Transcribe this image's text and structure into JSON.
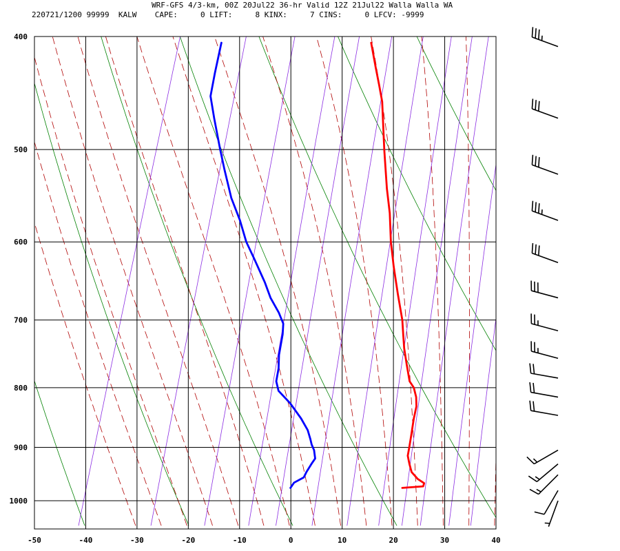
{
  "header": {
    "line1": "WRF-GFS 4/3-km, 00Z 20Jul22 36-hr Valid 12Z 21Jul22 Walla Walla WA",
    "line2": "220721/1200 99999  KALW    CAPE:     0 LIFT:     8 KINX:     7 CINS:     0 LFCV: -9999"
  },
  "chart_data": {
    "type": "skew-t",
    "xlim": [
      -50,
      40
    ],
    "x_ticks": [
      "-50",
      "-40",
      "-30",
      "-20",
      "-10",
      "0",
      "10",
      "20",
      "30",
      "40"
    ],
    "p_range": [
      400,
      1040
    ],
    "p_ticks": [
      "400",
      "500",
      "600",
      "700",
      "800",
      "900",
      "1000"
    ],
    "grid": true,
    "colors": {
      "temperature": "#ff0000",
      "dewpoint": "#0000ff",
      "dry_adiabat": "#008000",
      "moist_adiabat": "#b00000",
      "mixing_ratio": "#8a2be2"
    },
    "series": [
      {
        "key": "temperature",
        "points": [
          [
            975,
            19.8
          ],
          [
            972,
            23.8
          ],
          [
            966,
            23.8
          ],
          [
            958,
            22.3
          ],
          [
            945,
            20.7
          ],
          [
            930,
            19.8
          ],
          [
            915,
            19.0
          ],
          [
            900,
            18.8
          ],
          [
            880,
            18.5
          ],
          [
            850,
            18.0
          ],
          [
            830,
            17.8
          ],
          [
            815,
            17.2
          ],
          [
            800,
            16.2
          ],
          [
            790,
            15.0
          ],
          [
            765,
            13.5
          ],
          [
            740,
            12.0
          ],
          [
            720,
            11.0
          ],
          [
            700,
            10.0
          ],
          [
            665,
            7.6
          ],
          [
            630,
            5.2
          ],
          [
            600,
            3.2
          ],
          [
            567,
            1.3
          ],
          [
            540,
            -0.7
          ],
          [
            500,
            -3.5
          ],
          [
            470,
            -5.6
          ],
          [
            455,
            -6.7
          ],
          [
            440,
            -8.3
          ],
          [
            425,
            -10.0
          ],
          [
            405,
            -12.3
          ]
        ]
      },
      {
        "key": "dewpoint",
        "points": [
          [
            975,
            -2.0
          ],
          [
            965,
            -1.6
          ],
          [
            955,
            0.0
          ],
          [
            945,
            0.2
          ],
          [
            930,
            0.7
          ],
          [
            920,
            1.1
          ],
          [
            905,
            0.4
          ],
          [
            895,
            -0.4
          ],
          [
            885,
            -1.0
          ],
          [
            870,
            -2.0
          ],
          [
            850,
            -4.0
          ],
          [
            825,
            -7.0
          ],
          [
            805,
            -10.0
          ],
          [
            790,
            -11.0
          ],
          [
            770,
            -11.3
          ],
          [
            750,
            -12.0
          ],
          [
            720,
            -12.5
          ],
          [
            705,
            -13.0
          ],
          [
            690,
            -14.5
          ],
          [
            670,
            -17.0
          ],
          [
            650,
            -19.0
          ],
          [
            620,
            -22.5
          ],
          [
            600,
            -25.0
          ],
          [
            575,
            -27.5
          ],
          [
            550,
            -30.5
          ],
          [
            520,
            -33.5
          ],
          [
            500,
            -35.5
          ],
          [
            470,
            -38.5
          ],
          [
            450,
            -40.5
          ],
          [
            430,
            -41.0
          ],
          [
            405,
            -41.5
          ]
        ]
      }
    ],
    "wind_barbs": [
      {
        "p": 408,
        "speed_kt": 35,
        "dir_deg": 290
      },
      {
        "p": 470,
        "speed_kt": 30,
        "dir_deg": 290
      },
      {
        "p": 525,
        "speed_kt": 30,
        "dir_deg": 290
      },
      {
        "p": 575,
        "speed_kt": 35,
        "dir_deg": 290
      },
      {
        "p": 625,
        "speed_kt": 30,
        "dir_deg": 290
      },
      {
        "p": 670,
        "speed_kt": 30,
        "dir_deg": 285
      },
      {
        "p": 715,
        "speed_kt": 25,
        "dir_deg": 285
      },
      {
        "p": 755,
        "speed_kt": 25,
        "dir_deg": 285
      },
      {
        "p": 785,
        "speed_kt": 20,
        "dir_deg": 280
      },
      {
        "p": 815,
        "speed_kt": 20,
        "dir_deg": 280
      },
      {
        "p": 845,
        "speed_kt": 20,
        "dir_deg": 280
      },
      {
        "p": 905,
        "speed_kt": 15,
        "dir_deg": 240
      },
      {
        "p": 930,
        "speed_kt": 15,
        "dir_deg": 230
      },
      {
        "p": 950,
        "speed_kt": 15,
        "dir_deg": 225
      },
      {
        "p": 980,
        "speed_kt": 10,
        "dir_deg": 210
      },
      {
        "p": 1000,
        "speed_kt": 5,
        "dir_deg": 200
      }
    ]
  }
}
